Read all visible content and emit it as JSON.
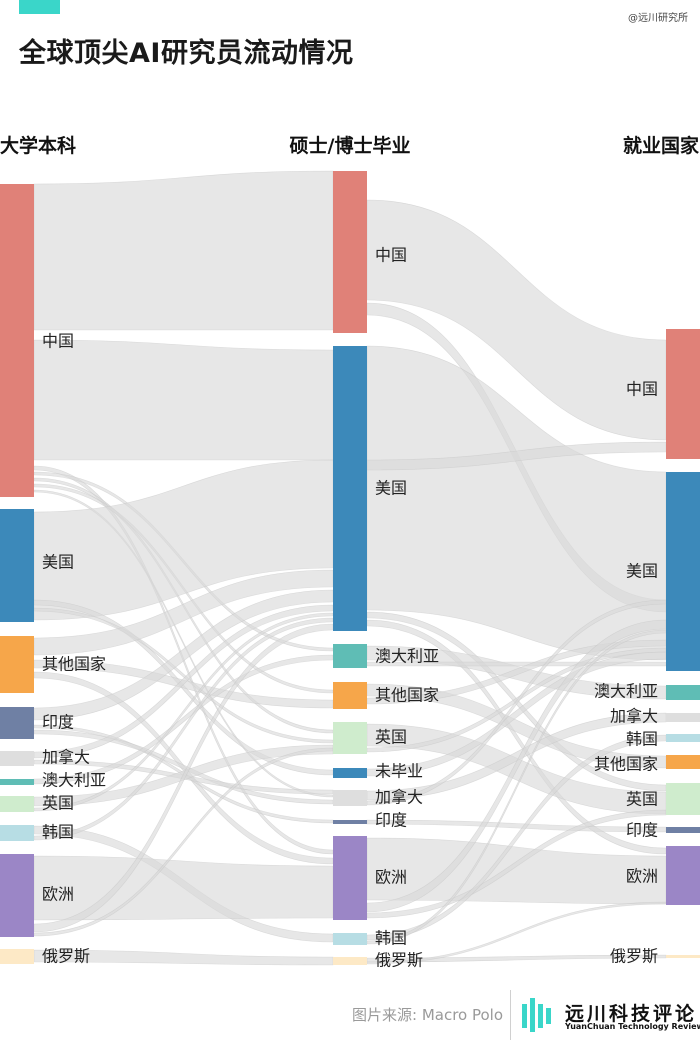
{
  "header": {
    "title": "全球顶尖AI研究员流动情况",
    "watermark": "@远川研究所",
    "accent_color": "#3ad6c9"
  },
  "columns": {
    "undergrad": "大学本科",
    "graduate": "硕士/博士毕业",
    "employment": "就业国家"
  },
  "nodes": {
    "undergrad": [
      {
        "id": "u_cn",
        "label": "中国",
        "color": "#e08178"
      },
      {
        "id": "u_us",
        "label": "美国",
        "color": "#3c89ba"
      },
      {
        "id": "u_other",
        "label": "其他国家",
        "color": "#f6a64a"
      },
      {
        "id": "u_in",
        "label": "印度",
        "color": "#6f80a4"
      },
      {
        "id": "u_ca",
        "label": "加拿大",
        "color": "#dedede"
      },
      {
        "id": "u_au",
        "label": "澳大利亚",
        "color": "#5fbdb5"
      },
      {
        "id": "u_uk",
        "label": "英国",
        "color": "#cfeccd"
      },
      {
        "id": "u_kr",
        "label": "韩国",
        "color": "#b7dde4"
      },
      {
        "id": "u_eu",
        "label": "欧洲",
        "color": "#9b86c6"
      },
      {
        "id": "u_ru",
        "label": "俄罗斯",
        "color": "#fde9c6"
      }
    ],
    "graduate": [
      {
        "id": "g_cn",
        "label": "中国",
        "color": "#e08178"
      },
      {
        "id": "g_us",
        "label": "美国",
        "color": "#3c89ba"
      },
      {
        "id": "g_au",
        "label": "澳大利亚",
        "color": "#5fbdb5"
      },
      {
        "id": "g_other",
        "label": "其他国家",
        "color": "#f6a64a"
      },
      {
        "id": "g_uk",
        "label": "英国",
        "color": "#cfeccd"
      },
      {
        "id": "g_none",
        "label": "未毕业",
        "color": "#3c89ba"
      },
      {
        "id": "g_ca",
        "label": "加拿大",
        "color": "#dedede"
      },
      {
        "id": "g_in",
        "label": "印度",
        "color": "#6f80a4"
      },
      {
        "id": "g_eu",
        "label": "欧洲",
        "color": "#9b86c6"
      },
      {
        "id": "g_kr",
        "label": "韩国",
        "color": "#b7dde4"
      },
      {
        "id": "g_ru",
        "label": "俄罗斯",
        "color": "#fde9c6"
      }
    ],
    "employment": [
      {
        "id": "e_cn",
        "label": "中国",
        "color": "#e08178"
      },
      {
        "id": "e_us",
        "label": "美国",
        "color": "#3c89ba"
      },
      {
        "id": "e_au",
        "label": "澳大利亚",
        "color": "#5fbdb5"
      },
      {
        "id": "e_ca",
        "label": "加拿大",
        "color": "#dedede"
      },
      {
        "id": "e_kr",
        "label": "韩国",
        "color": "#b7dde4"
      },
      {
        "id": "e_other",
        "label": "其他国家",
        "color": "#f6a64a"
      },
      {
        "id": "e_uk",
        "label": "英国",
        "color": "#cfeccd"
      },
      {
        "id": "e_in",
        "label": "印度",
        "color": "#6f80a4"
      },
      {
        "id": "e_eu",
        "label": "欧洲",
        "color": "#9b86c6"
      },
      {
        "id": "e_ru",
        "label": "俄罗斯",
        "color": "#fde9c6"
      }
    ]
  },
  "footer": {
    "source": "图片来源: Macro Polo",
    "brand_cn": "远川科技评论",
    "brand_en": "YuanChuan Technology Review"
  }
}
